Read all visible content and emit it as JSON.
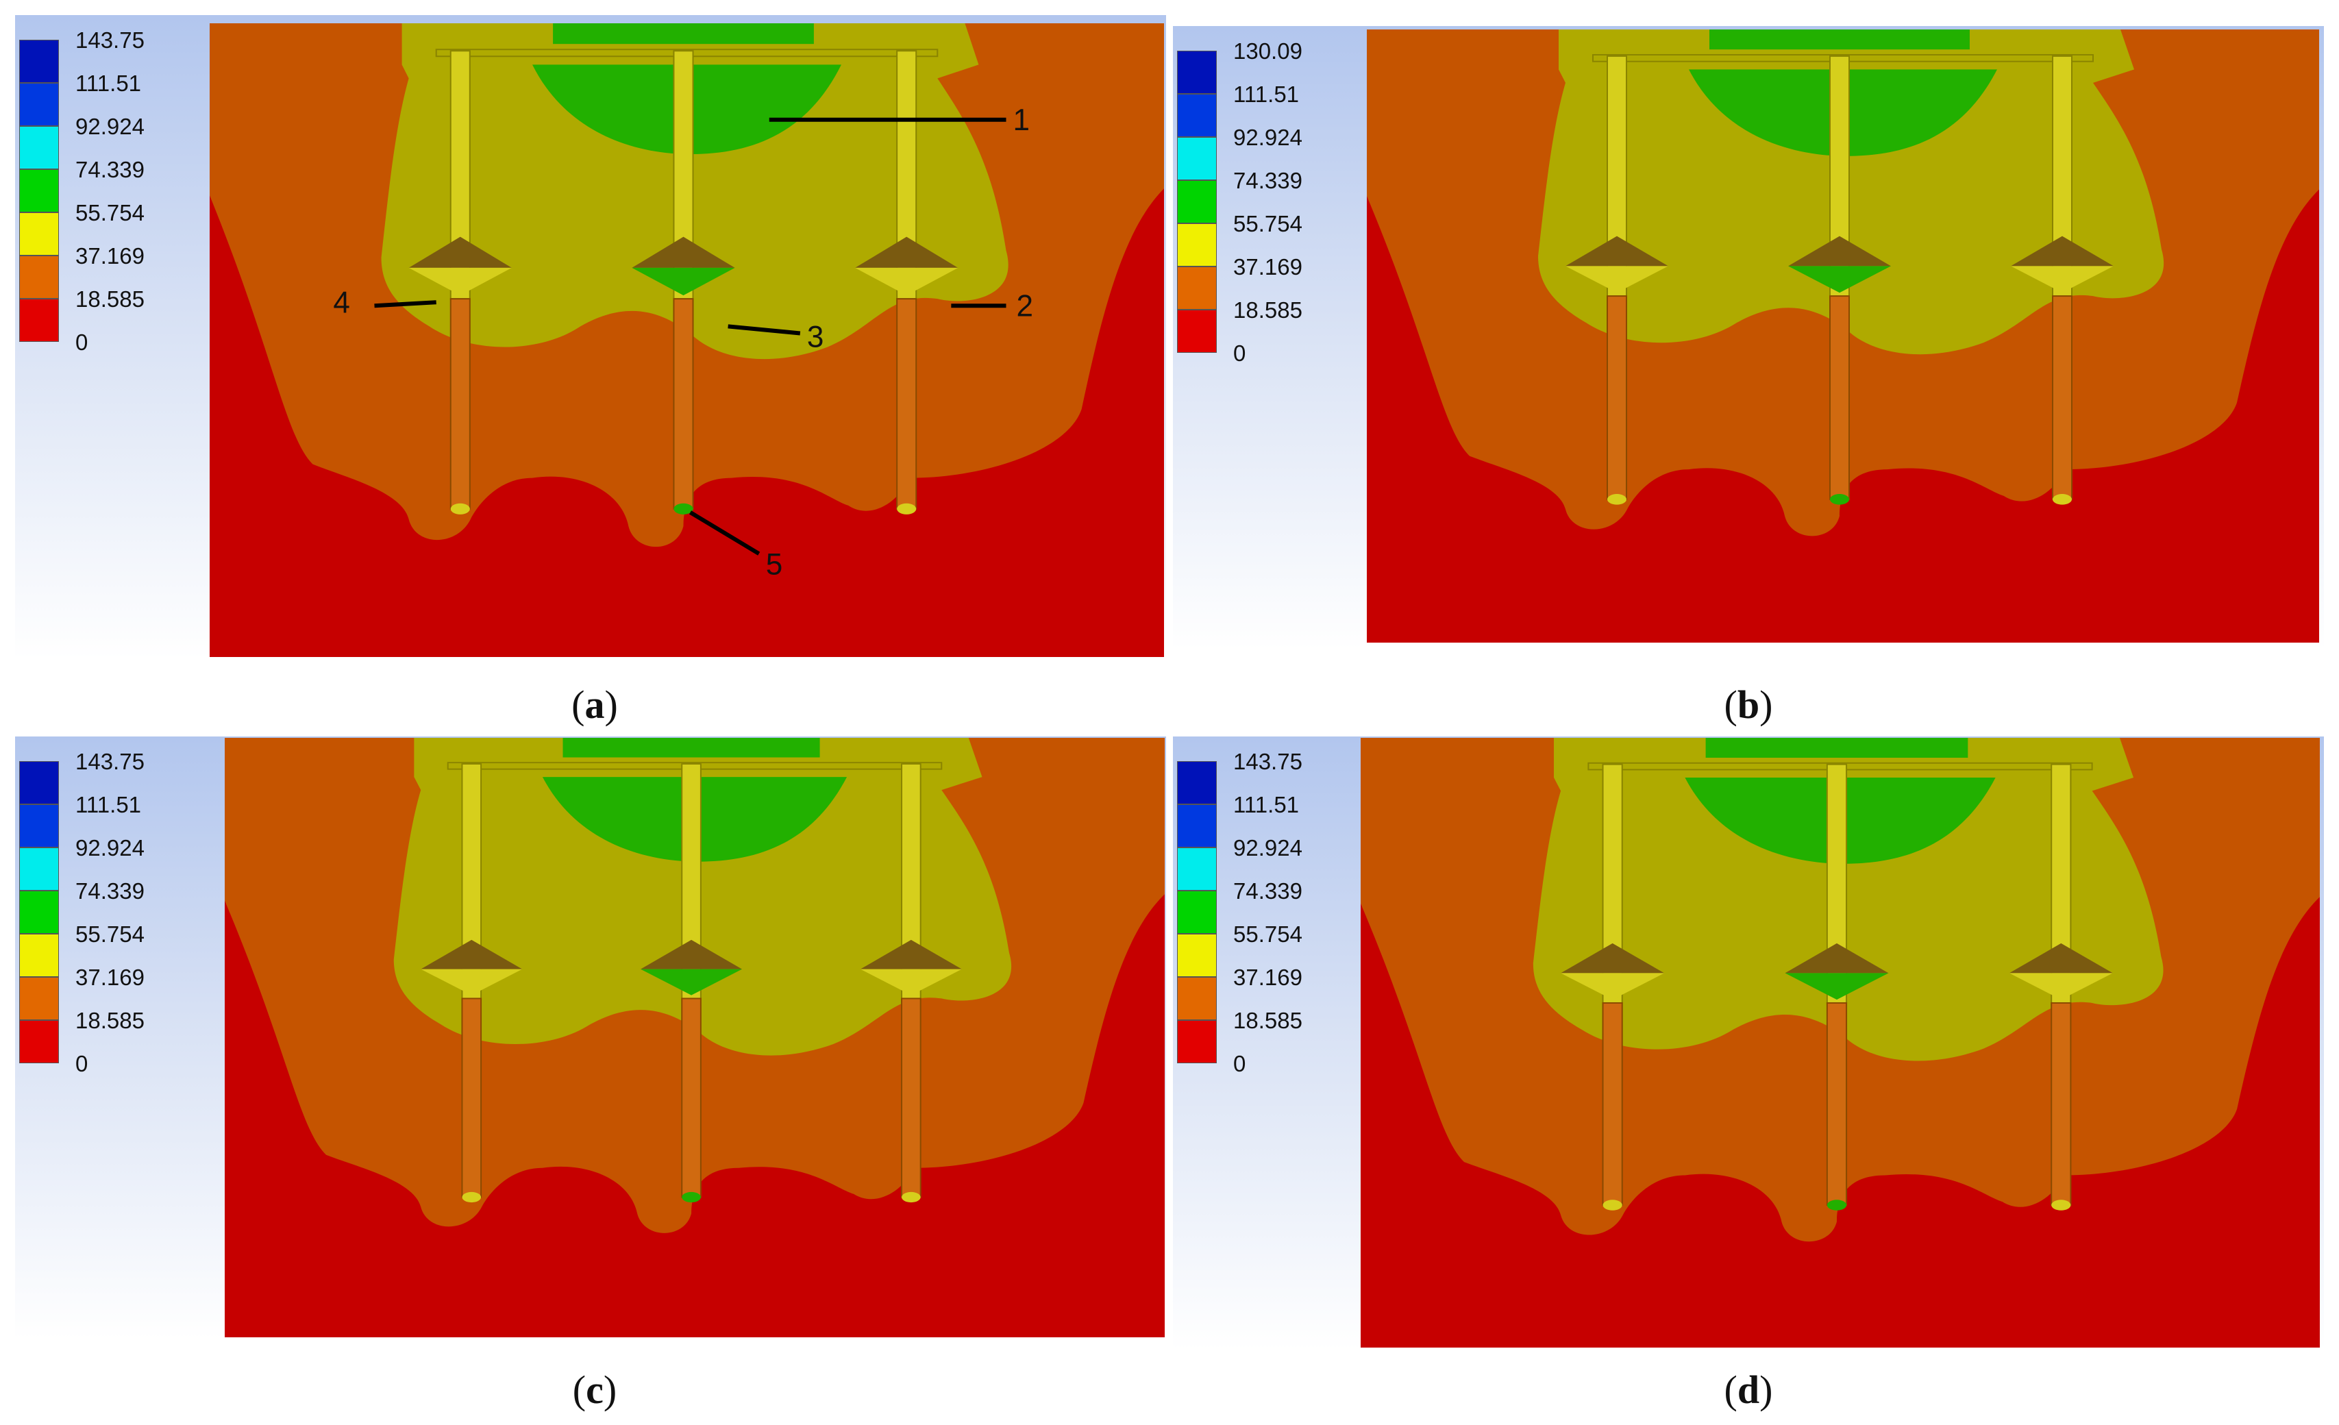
{
  "colors": {
    "band_0": "#e20000",
    "band_18": "#e26800",
    "band_37": "#f0f000",
    "band_55": "#00d400",
    "band_74": "#00ecec",
    "band_92": "#0039e0",
    "band_111": "#0012b8",
    "sim_red": "#c60000",
    "sim_orange": "#c55400",
    "sim_olive": "#afaa00",
    "sim_green": "#22b000",
    "rod_yellow": "#d6cf1c",
    "rod_orange": "#d06a10",
    "cone_dark": "#7a5a10"
  },
  "panels": [
    {
      "caption_open": "(",
      "caption_letter": "a",
      "caption_close": ")",
      "legend": [
        "143.75",
        "111.51",
        "92.924",
        "74.339",
        "55.754",
        "37.169",
        "18.585",
        "0"
      ],
      "callouts": [
        "1",
        "2",
        "3",
        "4",
        "5"
      ]
    },
    {
      "caption_open": "(",
      "caption_letter": "b",
      "caption_close": ")",
      "legend": [
        "130.09",
        "111.51",
        "92.924",
        "74.339",
        "55.754",
        "37.169",
        "18.585",
        "0"
      ],
      "callouts": []
    },
    {
      "caption_open": "(",
      "caption_letter": "c",
      "caption_close": ")",
      "legend": [
        "143.75",
        "111.51",
        "92.924",
        "74.339",
        "55.754",
        "37.169",
        "18.585",
        "0"
      ],
      "callouts": []
    },
    {
      "caption_open": "(",
      "caption_letter": "d",
      "caption_close": ")",
      "legend": [
        "143.75",
        "111.51",
        "92.924",
        "74.339",
        "55.754",
        "37.169",
        "18.585",
        "0"
      ],
      "callouts": []
    }
  ]
}
